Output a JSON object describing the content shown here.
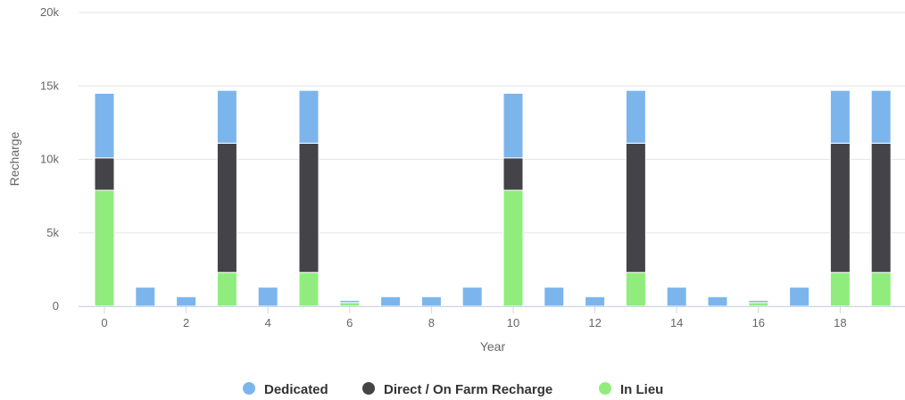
{
  "chart_data": {
    "type": "bar",
    "stacked": true,
    "title": "",
    "xlabel": "Year",
    "ylabel": "Recharge",
    "ylim": [
      0,
      20000
    ],
    "y_ticks": [
      0,
      5000,
      10000,
      15000,
      20000
    ],
    "y_tick_labels": [
      "0",
      "5k",
      "10k",
      "15k",
      "20k"
    ],
    "x": [
      0,
      1,
      2,
      3,
      4,
      5,
      6,
      7,
      8,
      9,
      10,
      11,
      12,
      13,
      14,
      15,
      16,
      17,
      18,
      19
    ],
    "x_ticks": [
      0,
      2,
      4,
      6,
      8,
      10,
      12,
      14,
      16,
      18
    ],
    "x_tick_labels": [
      "0",
      "2",
      "4",
      "6",
      "8",
      "10",
      "12",
      "14",
      "16",
      "18"
    ],
    "grid": true,
    "legend_position": "bottom",
    "series": [
      {
        "name": "In Lieu",
        "color": "#90ed7d",
        "values": [
          7900,
          0,
          0,
          2300,
          0,
          2300,
          250,
          0,
          0,
          0,
          7900,
          0,
          0,
          2300,
          0,
          0,
          250,
          0,
          2300,
          2300
        ]
      },
      {
        "name": "Direct / On Farm Recharge",
        "color": "#434348",
        "values": [
          2200,
          0,
          0,
          8800,
          0,
          8800,
          0,
          0,
          0,
          0,
          2200,
          0,
          0,
          8800,
          0,
          0,
          0,
          0,
          8800,
          8800
        ]
      },
      {
        "name": "Dedicated",
        "color": "#7cb5ec",
        "values": [
          4400,
          1300,
          650,
          3600,
          1300,
          3600,
          150,
          650,
          650,
          1300,
          4400,
          1300,
          650,
          3600,
          1300,
          650,
          150,
          1300,
          3600,
          3600
        ]
      }
    ],
    "legend": [
      {
        "name": "Dedicated",
        "color": "#7cb5ec"
      },
      {
        "name": "Direct / On Farm Recharge",
        "color": "#434348"
      },
      {
        "name": "In Lieu",
        "color": "#90ed7d"
      }
    ]
  }
}
